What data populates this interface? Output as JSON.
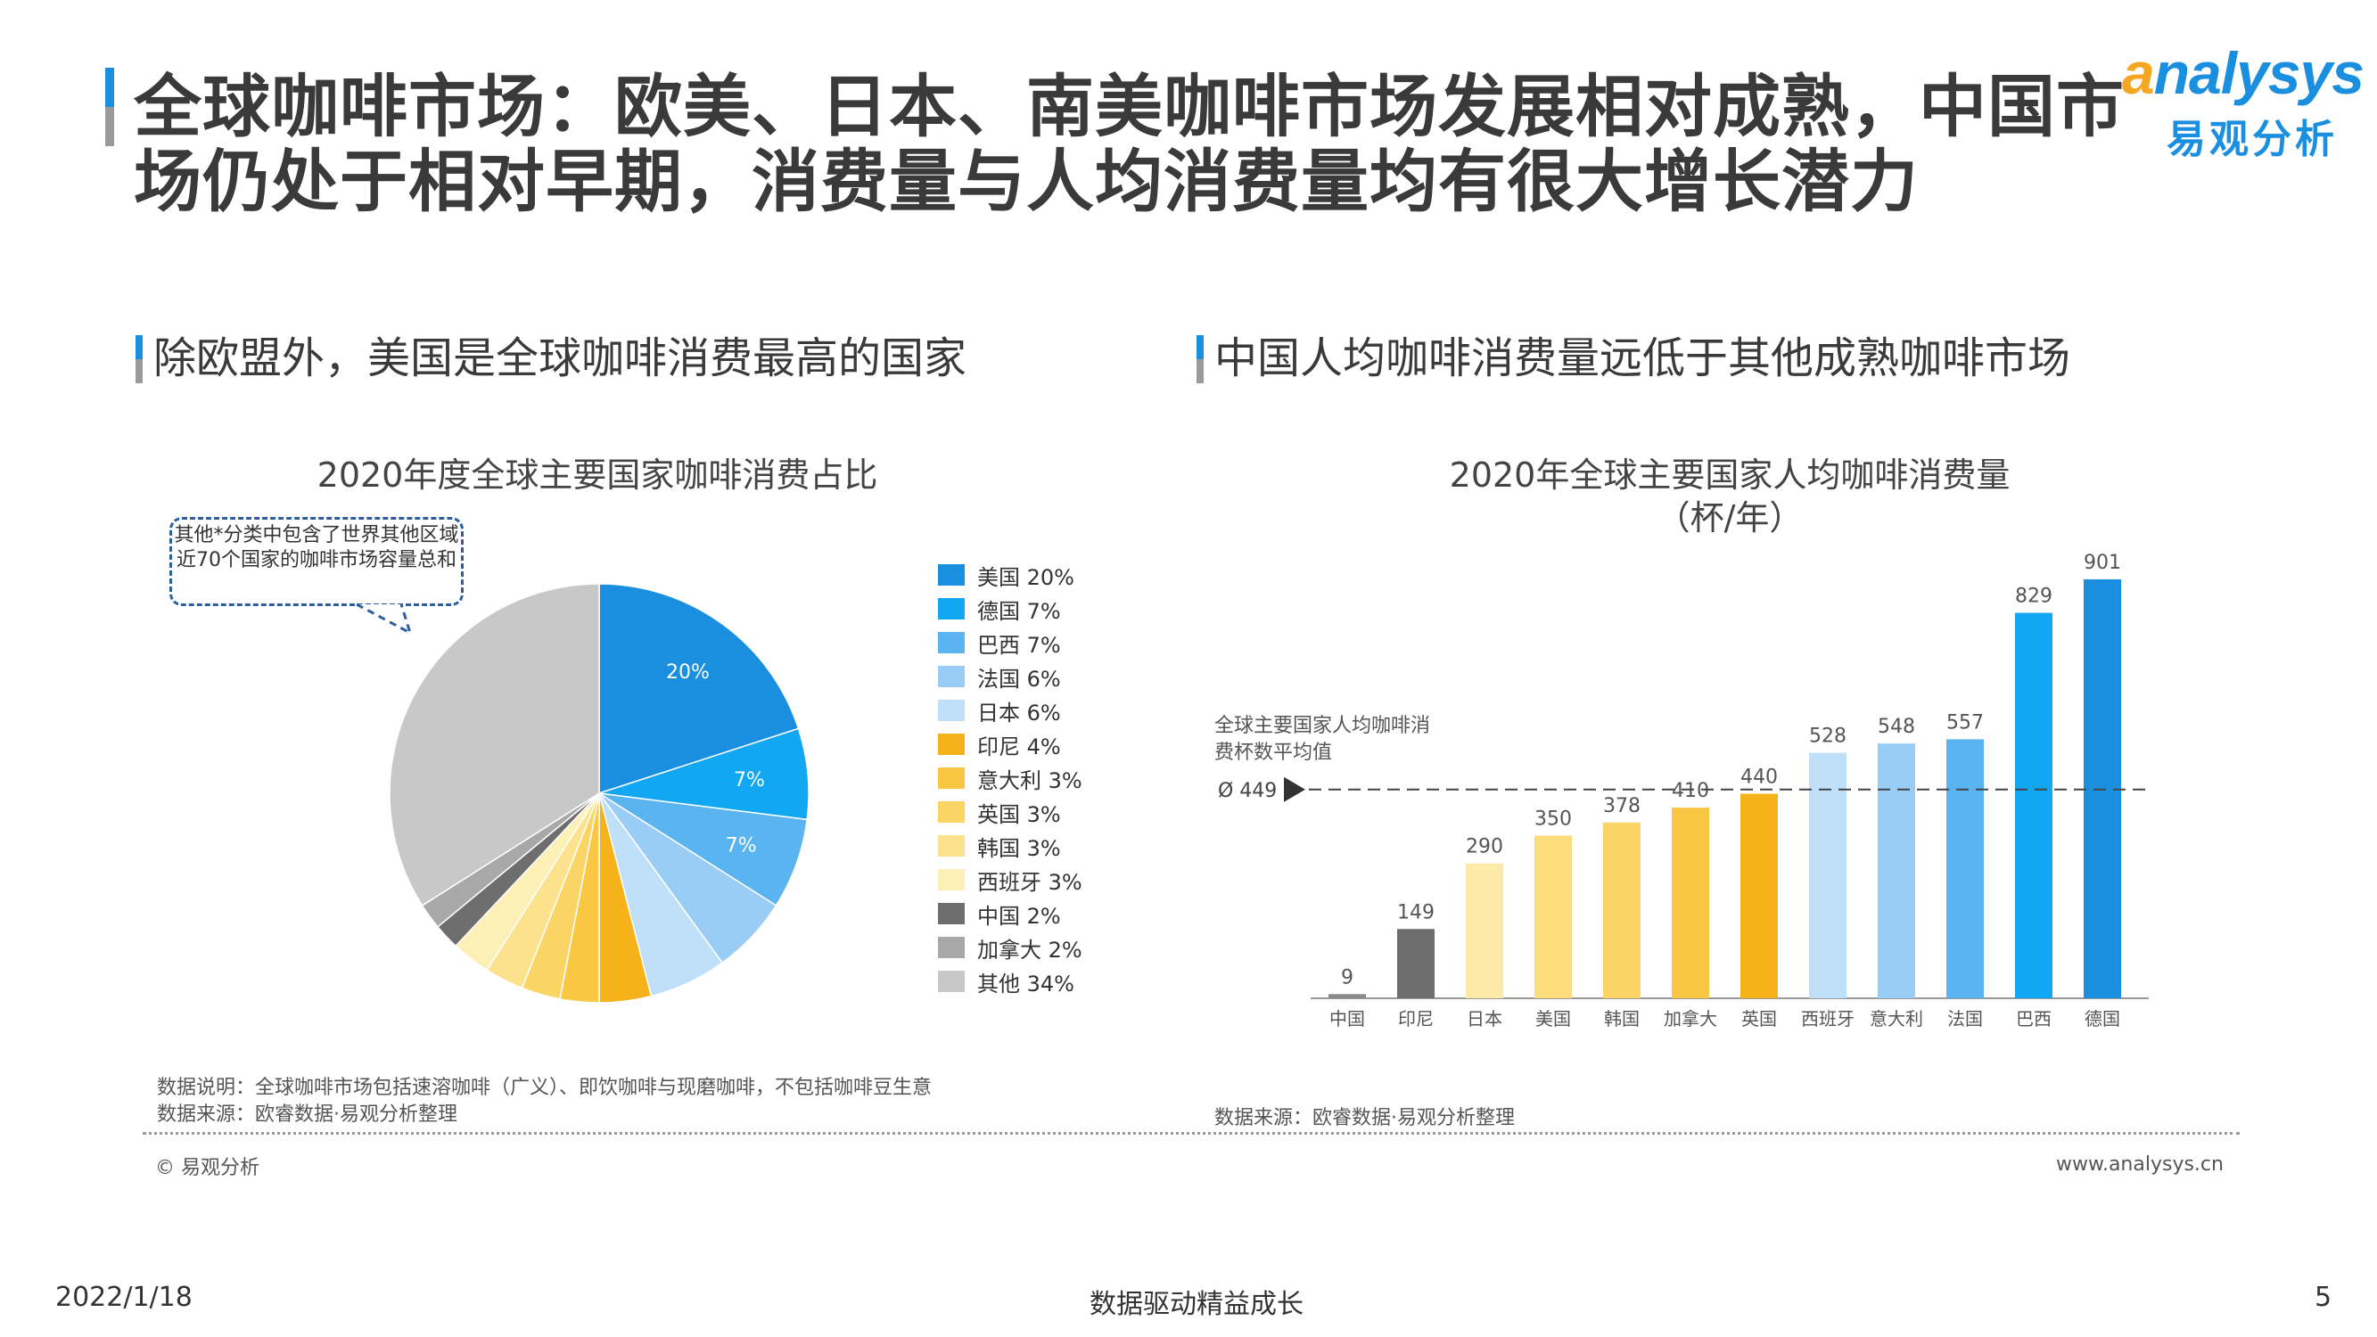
{
  "page": {
    "title": "全球咖啡市场：欧美、日本、南美咖啡市场发展相对成熟，中国市场仍处于相对早期，消费量与人均消费量均有很大增长潜力",
    "logo_en_a": "a",
    "logo_en_rest": "nalysys",
    "logo_cn": "易观分析",
    "left_subtitle": "除欧盟外，美国是全球咖啡消费最高的国家",
    "right_subtitle": "中国人均咖啡消费量远低于其他成熟咖啡市场",
    "callout_text": "其他*分类中包含了世界其他区域近70个国家的咖啡市场容量总和",
    "left_note_1": "数据说明：全球咖啡市场包括速溶咖啡（广义）、即饮咖啡与现磨咖啡，不包括咖啡豆生意",
    "left_note_2": "数据来源：欧睿数据·易观分析整理",
    "right_note": "数据来源：欧睿数据·易观分析整理",
    "copyright": "© 易观分析",
    "website": "www.analysys.cn",
    "date": "2022/1/18",
    "slogan": "数据驱动精益成长",
    "page_number": "5"
  },
  "chart_data": [
    {
      "type": "pie",
      "title": "2020年度全球主要国家咖啡消费占比",
      "slices": [
        {
          "label": "美国",
          "value": 20,
          "legend": "美国 20%",
          "color": "#1a8fe0",
          "data_label": "20%"
        },
        {
          "label": "德国",
          "value": 7,
          "legend": "德国 7%",
          "color": "#11a7f2",
          "data_label": "7%"
        },
        {
          "label": "巴西",
          "value": 7,
          "legend": "巴西 7%",
          "color": "#5ab4f0",
          "data_label": "7%"
        },
        {
          "label": "法国",
          "value": 6,
          "legend": "法国 6%",
          "color": "#99cdf5",
          "data_label": ""
        },
        {
          "label": "日本",
          "value": 6,
          "legend": "日本 6%",
          "color": "#bfe0f8",
          "data_label": ""
        },
        {
          "label": "印尼",
          "value": 4,
          "legend": "印尼 4%",
          "color": "#f5b21a",
          "data_label": ""
        },
        {
          "label": "意大利",
          "value": 3,
          "legend": "意大利 3%",
          "color": "#f9c744",
          "data_label": ""
        },
        {
          "label": "英国",
          "value": 3,
          "legend": "英国 3%",
          "color": "#fbd466",
          "data_label": ""
        },
        {
          "label": "韩国",
          "value": 3,
          "legend": "韩国 3%",
          "color": "#fce28d",
          "data_label": ""
        },
        {
          "label": "西班牙",
          "value": 3,
          "legend": "西班牙 3%",
          "color": "#fdf0b6",
          "data_label": ""
        },
        {
          "label": "中国",
          "value": 2,
          "legend": "中国 2%",
          "color": "#6e6e6e",
          "data_label": ""
        },
        {
          "label": "加拿大",
          "value": 2,
          "legend": "加拿大 2%",
          "color": "#a8a8a8",
          "data_label": ""
        },
        {
          "label": "其他",
          "value": 34,
          "legend": "其他 34%",
          "color": "#c8c8c8",
          "data_label": ""
        }
      ]
    },
    {
      "type": "bar",
      "title": "2020年全球主要国家人均咖啡消费量",
      "unit": "（杯/年）",
      "categories": [
        "中国",
        "印尼",
        "日本",
        "美国",
        "韩国",
        "加拿大",
        "英国",
        "西班牙",
        "意大利",
        "法国",
        "巴西",
        "德国"
      ],
      "values": [
        9,
        149,
        290,
        350,
        378,
        410,
        440,
        528,
        548,
        557,
        829,
        901
      ],
      "colors": [
        "#8a8a8a",
        "#6e6e6e",
        "#fdeaa8",
        "#fcdc7c",
        "#fbd466",
        "#f9c744",
        "#f5b21a",
        "#bfe0f8",
        "#99cdf5",
        "#5ab4f0",
        "#11a7f2",
        "#1a8fe0"
      ],
      "ylim": [
        0,
        901
      ],
      "average": {
        "value": 449,
        "label": "Ø 449",
        "note": "全球主要国家人均咖啡消费杯数平均值"
      }
    }
  ]
}
